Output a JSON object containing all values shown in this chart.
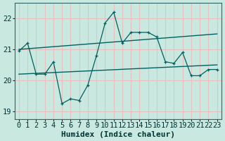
{
  "xlabel": "Humidex (Indice chaleur)",
  "xlim": [
    -0.5,
    23.5
  ],
  "ylim": [
    18.75,
    22.5
  ],
  "yticks": [
    19,
    20,
    21,
    22
  ],
  "xticks": [
    0,
    1,
    2,
    3,
    4,
    5,
    6,
    7,
    8,
    9,
    10,
    11,
    12,
    13,
    14,
    15,
    16,
    17,
    18,
    19,
    20,
    21,
    22,
    23
  ],
  "bg_color": "#c8e8e0",
  "grid_color": "#e8c0c0",
  "line_color": "#006060",
  "line1_x": [
    0,
    1,
    2,
    3,
    4,
    5,
    6,
    7,
    8,
    9,
    10,
    11,
    12,
    13,
    14,
    15,
    16,
    17,
    18,
    19,
    20,
    21,
    22,
    23
  ],
  "line1_y": [
    20.95,
    21.2,
    20.2,
    20.2,
    20.6,
    19.25,
    19.4,
    19.35,
    19.85,
    20.8,
    21.85,
    22.2,
    21.2,
    21.55,
    21.55,
    21.55,
    21.4,
    20.6,
    20.55,
    20.9,
    20.15,
    20.15,
    20.35,
    20.35
  ],
  "line2_x": [
    0,
    23
  ],
  "line2_y": [
    21.0,
    21.5
  ],
  "line3_x": [
    0,
    23
  ],
  "line3_y": [
    20.2,
    20.5
  ],
  "fontsize_label": 8,
  "fontsize_tick": 7.5
}
